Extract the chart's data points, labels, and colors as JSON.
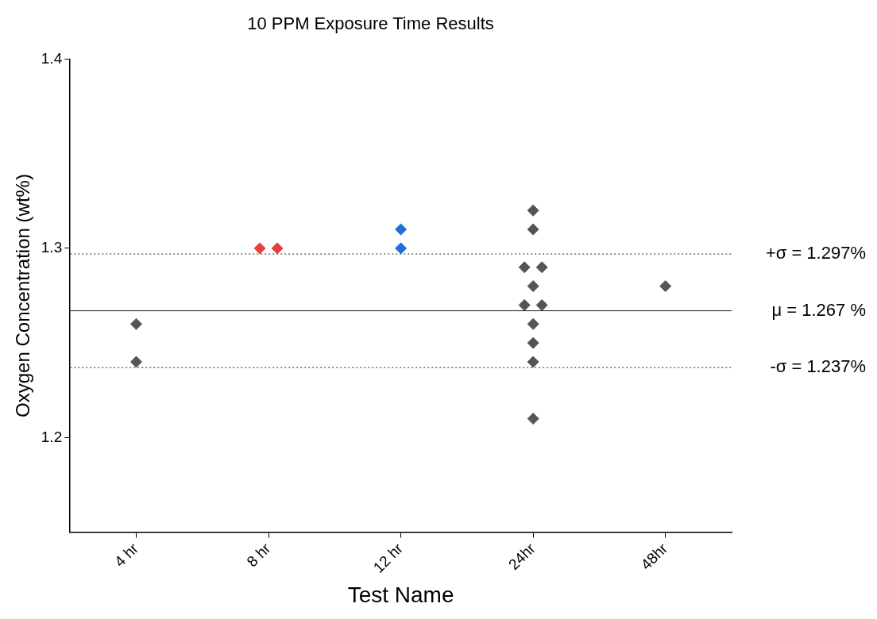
{
  "chart_data": {
    "type": "scatter",
    "title": "10 PPM Exposure Time Results",
    "xlabel": "Test Name",
    "ylabel": "Oxygen Concentration (wt%)",
    "categories": [
      "4 hr",
      "8 hr",
      "12 hr",
      "24hr",
      "48hr"
    ],
    "ylim": [
      1.15,
      1.4
    ],
    "yticks": [
      1.2,
      1.3,
      1.4
    ],
    "grid": false,
    "legend": false,
    "marker": "diamond",
    "series": [
      {
        "color": "#555555",
        "x": [
          "4 hr",
          "4 hr"
        ],
        "values": [
          1.26,
          1.24
        ]
      },
      {
        "color": "#e8413c",
        "x": [
          "8 hr",
          "8 hr"
        ],
        "values": [
          1.3,
          1.3
        ]
      },
      {
        "color": "#1f6fd6",
        "x": [
          "12 hr",
          "12 hr"
        ],
        "values": [
          1.31,
          1.3
        ]
      },
      {
        "color": "#555555",
        "x": [
          "24hr",
          "24hr",
          "24hr",
          "24hr",
          "24hr",
          "24hr",
          "24hr",
          "24hr",
          "24hr",
          "24hr",
          "24hr"
        ],
        "values": [
          1.32,
          1.31,
          1.29,
          1.29,
          1.28,
          1.27,
          1.27,
          1.26,
          1.25,
          1.24,
          1.21
        ]
      },
      {
        "color": "#555555",
        "x": [
          "48hr"
        ],
        "values": [
          1.28
        ]
      }
    ],
    "ref_lines": [
      {
        "axis": "y",
        "value": 1.297,
        "label": "+σ = 1.297%",
        "line_style": "dotted"
      },
      {
        "axis": "y",
        "value": 1.267,
        "label": "μ = 1.267 %",
        "line_style": "solid"
      },
      {
        "axis": "y",
        "value": 1.237,
        "label": "-σ = 1.237%",
        "line_style": "dotted"
      }
    ]
  }
}
